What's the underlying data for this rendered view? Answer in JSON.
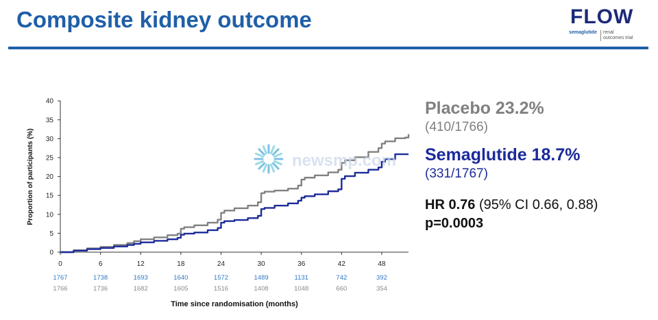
{
  "slide": {
    "title": "Composite kidney outcome",
    "logo": {
      "word": "FLOW",
      "sub1": "semaglutide",
      "sub2a": "renal",
      "sub2b": "outcomes trial"
    }
  },
  "legend": {
    "placebo": {
      "name": "Placebo 23.2%",
      "count": "(410/1766)"
    },
    "semaglutide": {
      "name": "Semaglutide 18.7%",
      "count": "(331/1767)"
    }
  },
  "stats": {
    "hr_label": "HR 0.76",
    "hr_ci": "(95% CI 0.66, 0.88)",
    "p": "p=0.0003"
  },
  "watermark": {
    "text": "newsmp.com"
  },
  "colors": {
    "title": "#1f5fa8",
    "placebo": "#808080",
    "semaglutide": "#1b2a9a"
  },
  "chart_data": {
    "type": "line",
    "xlabel": "Time since randomisation (months)",
    "ylabel": "Proportion of participants (%)",
    "xlim": [
      0,
      52
    ],
    "ylim": [
      0,
      40
    ],
    "x_ticks": [
      0,
      6,
      12,
      18,
      24,
      30,
      36,
      42,
      48
    ],
    "y_ticks": [
      0,
      5,
      10,
      15,
      20,
      25,
      30,
      35,
      40
    ],
    "series": [
      {
        "name": "Placebo",
        "x": [
          0,
          2,
          4,
          6,
          8,
          10,
          11,
          12,
          14,
          16,
          17.5,
          18,
          18.5,
          20,
          22,
          23.5,
          24,
          24.5,
          26,
          28,
          29.5,
          30,
          30.5,
          32,
          34,
          35.5,
          36,
          36.5,
          38,
          40,
          41.5,
          42,
          42.5,
          44,
          46,
          47.5,
          48,
          48.5,
          50,
          51.5,
          52
        ],
        "y": [
          0,
          0.5,
          1,
          1.4,
          1.9,
          2.4,
          2.9,
          3.4,
          3.9,
          4.5,
          4.9,
          6.2,
          6.6,
          7.1,
          7.8,
          8.6,
          10.4,
          11,
          11.6,
          12.3,
          13.2,
          15.6,
          16,
          16.3,
          16.8,
          17.6,
          19.2,
          19.7,
          20.3,
          21.1,
          21.8,
          23.6,
          24.3,
          25.1,
          26.5,
          27.5,
          28.7,
          29.3,
          30.1,
          30.3,
          31.2
        ]
      },
      {
        "name": "Semaglutide",
        "x": [
          0,
          2,
          4,
          6,
          8,
          10,
          11,
          12,
          14,
          16,
          17.5,
          18,
          18.5,
          20,
          22,
          23.5,
          24,
          24.5,
          26,
          28,
          29.5,
          30,
          30.5,
          32,
          34,
          35.5,
          36,
          36.5,
          38,
          40,
          41.5,
          42,
          42.5,
          44,
          46,
          47.5,
          48,
          48.5,
          50,
          51.5,
          52
        ],
        "y": [
          0,
          0.4,
          0.8,
          1.1,
          1.5,
          1.9,
          2.2,
          2.6,
          3,
          3.4,
          3.8,
          4.6,
          4.9,
          5.2,
          5.8,
          6.4,
          7.8,
          8.2,
          8.5,
          9,
          9.6,
          11.4,
          11.7,
          12.3,
          12.9,
          13.6,
          14.4,
          14.8,
          15.3,
          16.1,
          16.6,
          19.4,
          20.1,
          21,
          21.8,
          22.4,
          23.9,
          24.6,
          25.9,
          25.9,
          25.9
        ]
      }
    ],
    "at_risk": {
      "semaglutide": [
        "1767",
        "1738",
        "1693",
        "1640",
        "1572",
        "1489",
        "1131",
        "742",
        "392"
      ],
      "placebo": [
        "1766",
        "1736",
        "1682",
        "1605",
        "1516",
        "1408",
        "1048",
        "660",
        "354"
      ]
    },
    "grid": false
  }
}
